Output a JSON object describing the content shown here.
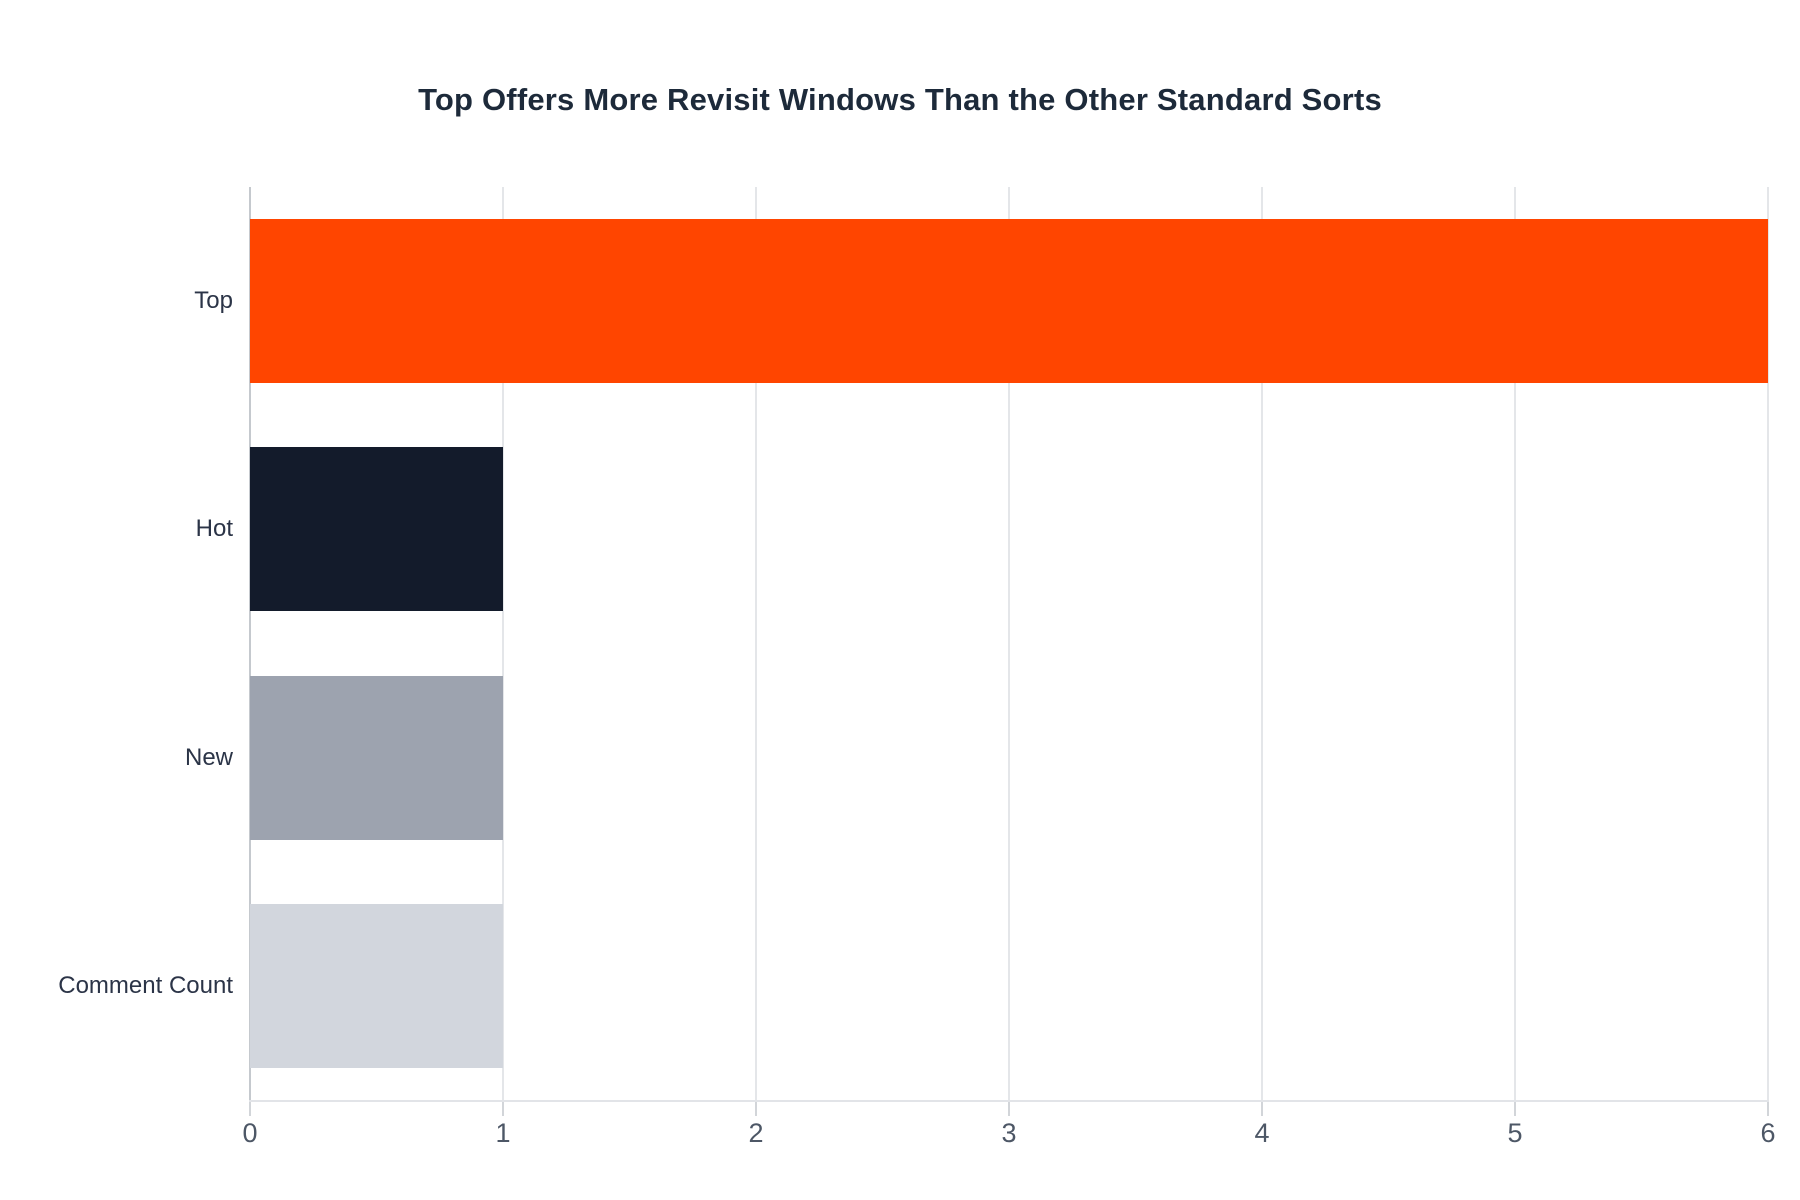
{
  "title": "Top Offers More Revisit Windows Than the Other Standard Sorts",
  "chart_data": {
    "type": "bar",
    "orientation": "horizontal",
    "title": "Top Offers More Revisit Windows Than the Other Standard Sorts",
    "categories": [
      "Top",
      "Hot",
      "New",
      "Comment Count"
    ],
    "values": [
      6,
      1,
      1,
      1
    ],
    "bar_colors": [
      "#ff4500",
      "#131b2b",
      "#9da3af",
      "#d2d6dd"
    ],
    "xlabel": "",
    "ylabel": "",
    "xlim": [
      0,
      6
    ],
    "xticks": [
      0,
      1,
      2,
      3,
      4,
      5,
      6
    ],
    "grid": "vertical",
    "legend_position": "none",
    "colors": {
      "background": "#ffffff",
      "title_text": "#1d2a3a",
      "category_label_text": "#2b3447",
      "tick_label_text": "#4d5766",
      "gridline": "#e4e6e9",
      "zeroline": "#c5c9ce",
      "axis_line": "#e2e4e8",
      "tick_mark": "#d2d5d9"
    }
  }
}
